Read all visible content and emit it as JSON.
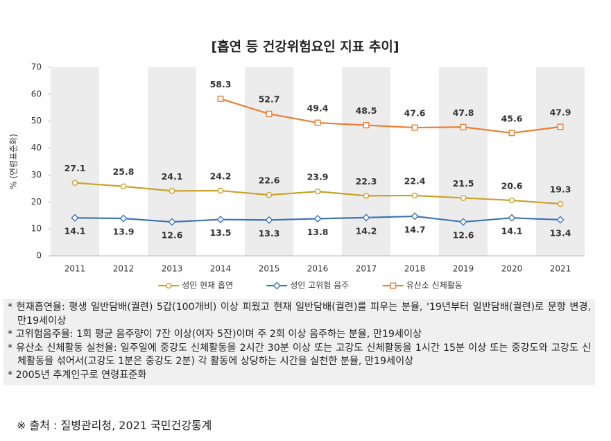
{
  "chart_data": {
    "type": "line",
    "title": "[흡연 등 건강위험요인 지표 추이]",
    "y_label": "% (연령표준화)",
    "categories": [
      "2011",
      "2012",
      "2013",
      "2014",
      "2015",
      "2016",
      "2017",
      "2018",
      "2019",
      "2020",
      "2021"
    ],
    "series": [
      {
        "name": "성인 현재 흡연",
        "color": "#c9a227",
        "marker": "circle",
        "label_position": "above",
        "values": [
          27.1,
          25.8,
          24.1,
          24.2,
          22.6,
          23.9,
          22.3,
          22.4,
          21.5,
          20.6,
          19.3
        ]
      },
      {
        "name": "성인 고위험 음주",
        "color": "#3c73b4",
        "marker": "diamond",
        "label_position": "below",
        "values": [
          14.1,
          13.9,
          12.6,
          13.5,
          13.3,
          13.8,
          14.2,
          14.7,
          12.6,
          14.1,
          13.4
        ]
      },
      {
        "name": "유산소 신체활동",
        "color": "#ed7d31",
        "marker": "square",
        "label_position": "above",
        "values": [
          null,
          null,
          null,
          58.3,
          52.7,
          49.4,
          48.5,
          47.6,
          47.8,
          45.6,
          47.9
        ]
      }
    ],
    "ylim": [
      0,
      70
    ],
    "yticks": [
      0,
      10,
      20,
      30,
      40,
      50,
      60,
      70
    ],
    "legend": "bottom"
  },
  "notes": [
    "* 현재흡연율: 평생 일반담배(궐련) 5갑(100개비) 이상 피웠고 현재 일반담배(궐련)를 피우는 분율, '19년부터 일반담배(궐련)로 문항 변경, 만19세이상",
    "* 고위험음주율: 1회 평균 음주량이 7잔 이상(여자 5잔)이며 주 2회 이상 음주하는 분율, 만19세이상",
    "* 유산소 신체활동 실천율: 일주일에 중강도 신체활동을 2시간 30분 이상 또는 고강도 신체활동을 1시간 15분 이상 또는 중강도와 고강도 신체활동을 섞어서(고강도 1분은 중강도 2분) 각 활동에 상당하는 시간을 실천한 분율, 만19세이상",
    "* 2005년 추계인구로 연령표준화"
  ],
  "source": "※ 출처 : 질병관리청, 2021 국민건강통계"
}
